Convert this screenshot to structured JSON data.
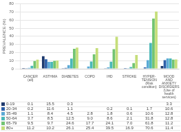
{
  "chart_data": {
    "type": "bar",
    "ylabel": "PREVALENCE (%)",
    "categories": [
      "CANCER\n(all)",
      "ASTHMA",
      "DIABETES",
      "COPD",
      "IHD",
      "STROKE",
      "HYPER-\nTENSION\n(Risk\ncondition)",
      "MOOD\nAND\nANXIETY\nDISORDERS\n(Use of\nhealth\nservices)"
    ],
    "series": [
      {
        "name": "0-19",
        "color": "#1e3a6e",
        "values": [
          0.1,
          15.5,
          0.3,
          null,
          null,
          null,
          null,
          3.3
        ],
        "value_labels": [
          "0.1",
          "15.5",
          "0.3",
          null,
          null,
          null,
          null,
          "3.3"
        ]
      },
      {
        "name": "20-34",
        "color": "#2e60a8",
        "values": [
          0.2,
          11.6,
          1.1,
          null,
          0.2,
          0.1,
          1.7,
          10.6
        ],
        "value_labels": [
          "0.2",
          "11.6",
          "1.1",
          null,
          "0.2",
          "0.1",
          "1.7",
          "10.6"
        ]
      },
      {
        "name": "35-49",
        "color": "#5baad5",
        "values": [
          1.1,
          8.4,
          4.5,
          2.8,
          1.8,
          0.6,
          10.6,
          12.8
        ],
        "value_labels": [
          "1.1",
          "8.4",
          "4.5",
          "2.8",
          "1.8",
          "0.6",
          "10.6",
          "12.8"
        ]
      },
      {
        "name": "50-64",
        "color": "#4ab8b8",
        "values": [
          3.7,
          8.5,
          12.5,
          9.0,
          8.6,
          2.1,
          31.8,
          12.8
        ],
        "value_labels": [
          "3.7",
          "8.5",
          "12.5",
          "9.0",
          "8.6",
          "2.1",
          "31.8",
          "12.8"
        ]
      },
      {
        "name": "65-79",
        "color": "#72c472",
        "values": [
          9.5,
          9.7,
          24.6,
          17.7,
          24.1,
          7.0,
          61.8,
          11.2
        ],
        "value_labels": [
          "9.5",
          "9.7",
          "24.6",
          "17.7",
          "24.1",
          "7.0",
          "61.8",
          "11.2"
        ]
      },
      {
        "name": "80+",
        "color": "#c5de7a",
        "values": [
          11.2,
          10.2,
          26.1,
          25.4,
          39.5,
          16.9,
          70.6,
          11.4
        ],
        "value_labels": [
          "11.2",
          "10.2",
          "26.1",
          "25.4",
          "39.5",
          "16.9",
          "70.6",
          "11.4"
        ]
      }
    ],
    "ylim": [
      0,
      80
    ],
    "yticks": [
      0,
      10,
      20,
      30,
      40,
      50,
      60,
      70,
      80
    ],
    "grid": true,
    "legend": "bottom"
  }
}
